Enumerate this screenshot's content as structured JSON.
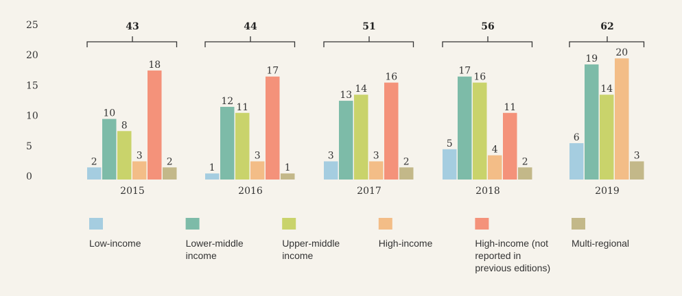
{
  "chart_data": {
    "type": "bar",
    "categories": [
      "2015",
      "2016",
      "2017",
      "2018",
      "2019"
    ],
    "totals": [
      43,
      44,
      51,
      56,
      62
    ],
    "series": [
      {
        "name": "Low-income",
        "color": "#a5cde0",
        "values": [
          2,
          1,
          3,
          5,
          6
        ]
      },
      {
        "name": "Lower-middle income",
        "color": "#7dbba8",
        "values": [
          10,
          12,
          13,
          17,
          19
        ]
      },
      {
        "name": "Upper-middle income",
        "color": "#c9d36b",
        "values": [
          8,
          11,
          14,
          16,
          14
        ]
      },
      {
        "name": "High-income",
        "color": "#f3bd87",
        "values": [
          3,
          3,
          3,
          4,
          20
        ]
      },
      {
        "name": "High-income (not reported in previous editions)",
        "color": "#f4927a",
        "values": [
          18,
          17,
          16,
          11,
          null
        ]
      },
      {
        "name": "Multi-regional",
        "color": "#c3b889",
        "values": [
          2,
          1,
          2,
          2,
          3
        ]
      }
    ],
    "ylim": [
      0,
      25
    ],
    "yticks": [
      0,
      5,
      10,
      15,
      20,
      25
    ]
  }
}
